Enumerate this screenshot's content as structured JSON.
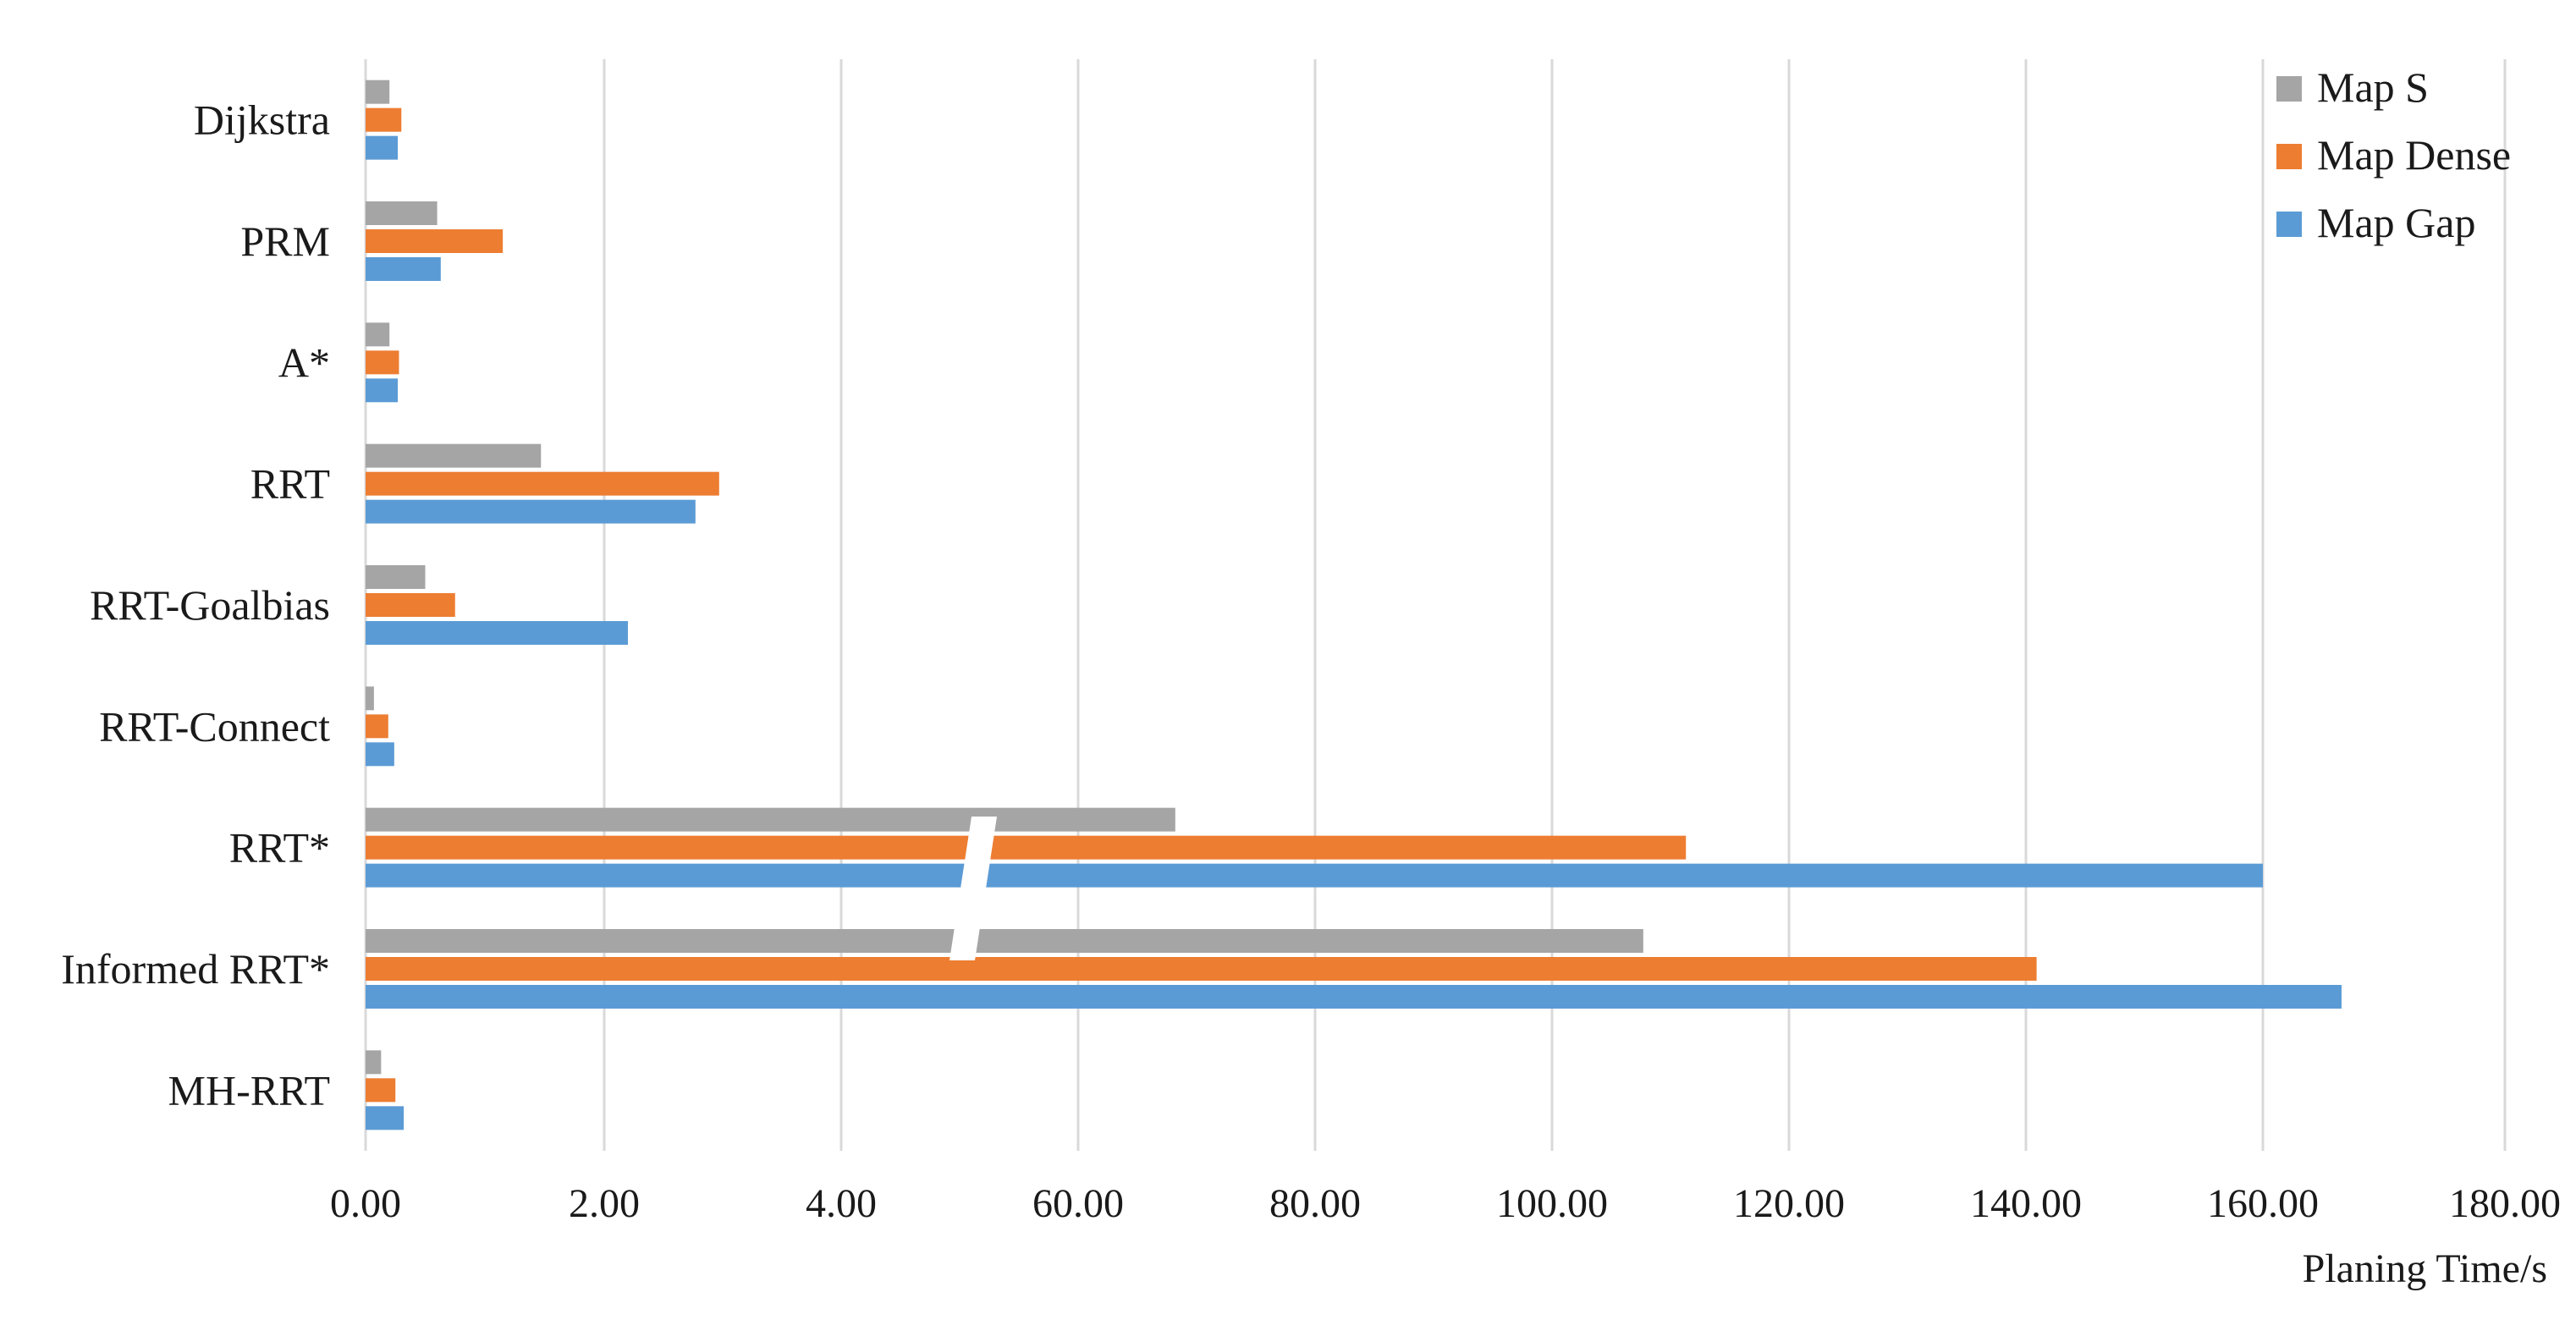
{
  "chart_data": {
    "type": "bar",
    "orientation": "horizontal",
    "broken_axis": true,
    "categories": [
      "Dijkstra",
      "PRM",
      "A*",
      "RRT",
      "RRT-Goalbias",
      "RRT-Connect",
      "RRT*",
      "Informed RRT*",
      "MH-RRT"
    ],
    "series": [
      {
        "name": "Map S",
        "color": "#a5a5a5",
        "values": [
          0.2,
          0.6,
          0.2,
          1.47,
          0.5,
          0.07,
          68.2,
          107.7,
          0.13
        ]
      },
      {
        "name": "Map Dense",
        "color": "#ed7d31",
        "values": [
          0.3,
          1.15,
          0.28,
          2.97,
          0.75,
          0.19,
          111.3,
          140.9,
          0.25
        ]
      },
      {
        "name": "Map Gap",
        "color": "#5b9bd5",
        "values": [
          0.27,
          0.63,
          0.27,
          2.77,
          2.2,
          0.24,
          160.0,
          166.5,
          0.32
        ]
      }
    ],
    "x_ticks": [
      "0.00",
      "2.00",
      "4.00",
      "60.00",
      "80.00",
      "100.00",
      "120.00",
      "140.00",
      "160.00",
      "180.00"
    ],
    "x_tick_values": [
      0,
      2,
      4,
      60,
      80,
      100,
      120,
      140,
      160,
      180
    ],
    "xlabel": "Planing Time/s",
    "ylabel": "",
    "title": "",
    "grid": "vertical",
    "legend": "top-right"
  }
}
